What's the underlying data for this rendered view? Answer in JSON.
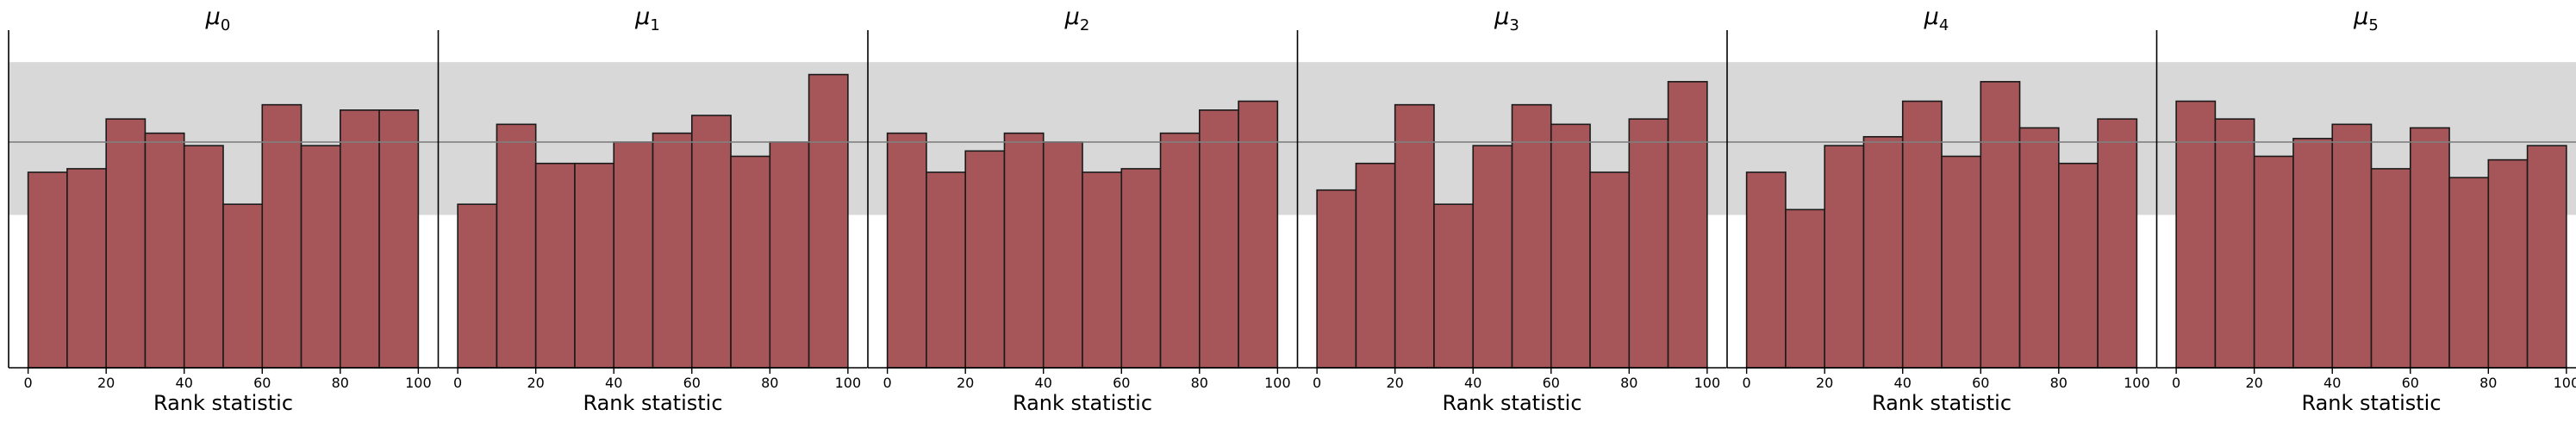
{
  "chart_data": [
    {
      "type": "bar",
      "title": "μ",
      "title_subscript": "0",
      "xlabel": "Rank statistic",
      "xlim": [
        -5,
        105
      ],
      "ylim": [
        0,
        19
      ],
      "xticks": [
        "0",
        "20",
        "40",
        "60",
        "80",
        "100"
      ],
      "bin_edges": [
        0,
        10,
        20,
        30,
        40,
        50,
        60,
        70,
        80,
        90,
        100
      ],
      "values": [
        11,
        11.2,
        14,
        13.2,
        12.5,
        9.2,
        14.8,
        12.5,
        14.5,
        14.5
      ],
      "reference_line": 12.7,
      "band": [
        8.6,
        17.2
      ]
    },
    {
      "type": "bar",
      "title": "μ",
      "title_subscript": "1",
      "xlabel": "Rank statistic",
      "xlim": [
        -5,
        105
      ],
      "ylim": [
        0,
        19
      ],
      "xticks": [
        "0",
        "20",
        "40",
        "60",
        "80",
        "100"
      ],
      "bin_edges": [
        0,
        10,
        20,
        30,
        40,
        50,
        60,
        70,
        80,
        90,
        100
      ],
      "values": [
        9.2,
        13.7,
        11.5,
        11.5,
        12.7,
        13.2,
        14.2,
        11.9,
        12.7,
        16.5
      ],
      "reference_line": 12.7,
      "band": [
        8.6,
        17.2
      ]
    },
    {
      "type": "bar",
      "title": "μ",
      "title_subscript": "2",
      "xlabel": "Rank statistic",
      "xlim": [
        -5,
        105
      ],
      "ylim": [
        0,
        19
      ],
      "xticks": [
        "0",
        "20",
        "40",
        "60",
        "80",
        "100"
      ],
      "bin_edges": [
        0,
        10,
        20,
        30,
        40,
        50,
        60,
        70,
        80,
        90,
        100
      ],
      "values": [
        13.2,
        11,
        12.2,
        13.2,
        12.7,
        11,
        11.2,
        13.2,
        14.5,
        15
      ],
      "reference_line": 12.7,
      "band": [
        8.6,
        17.2
      ]
    },
    {
      "type": "bar",
      "title": "μ",
      "title_subscript": "3",
      "xlabel": "Rank statistic",
      "xlim": [
        -5,
        105
      ],
      "ylim": [
        0,
        19
      ],
      "xticks": [
        "0",
        "20",
        "40",
        "60",
        "80",
        "100"
      ],
      "bin_edges": [
        0,
        10,
        20,
        30,
        40,
        50,
        60,
        70,
        80,
        90,
        100
      ],
      "values": [
        10,
        11.5,
        14.8,
        9.2,
        12.5,
        14.8,
        13.7,
        11,
        14,
        16.1
      ],
      "reference_line": 12.7,
      "band": [
        8.6,
        17.2
      ]
    },
    {
      "type": "bar",
      "title": "μ",
      "title_subscript": "4",
      "xlabel": "Rank statistic",
      "xlim": [
        -5,
        105
      ],
      "ylim": [
        0,
        19
      ],
      "xticks": [
        "0",
        "20",
        "40",
        "60",
        "80",
        "100"
      ],
      "bin_edges": [
        0,
        10,
        20,
        30,
        40,
        50,
        60,
        70,
        80,
        90,
        100
      ],
      "values": [
        11,
        8.9,
        12.5,
        13,
        15,
        11.9,
        16.1,
        13.5,
        11.5,
        14
      ],
      "reference_line": 12.7,
      "band": [
        8.6,
        17.2
      ]
    },
    {
      "type": "bar",
      "title": "μ",
      "title_subscript": "5",
      "xlabel": "Rank statistic",
      "xlim": [
        -5,
        105
      ],
      "ylim": [
        0,
        19
      ],
      "xticks": [
        "0",
        "20",
        "40",
        "60",
        "80",
        "100"
      ],
      "bin_edges": [
        0,
        10,
        20,
        30,
        40,
        50,
        60,
        70,
        80,
        90,
        100
      ],
      "values": [
        15,
        14,
        11.9,
        12.9,
        13.7,
        11.2,
        13.5,
        10.7,
        11.7,
        12.5
      ],
      "reference_line": 12.7,
      "band": [
        8.6,
        17.2
      ]
    }
  ],
  "colors": {
    "bar_fill": "#a65558",
    "bar_edge": "#1a1a1a",
    "band": "#d8d8d8",
    "reference_line": "#808080",
    "axis": "#000000"
  }
}
